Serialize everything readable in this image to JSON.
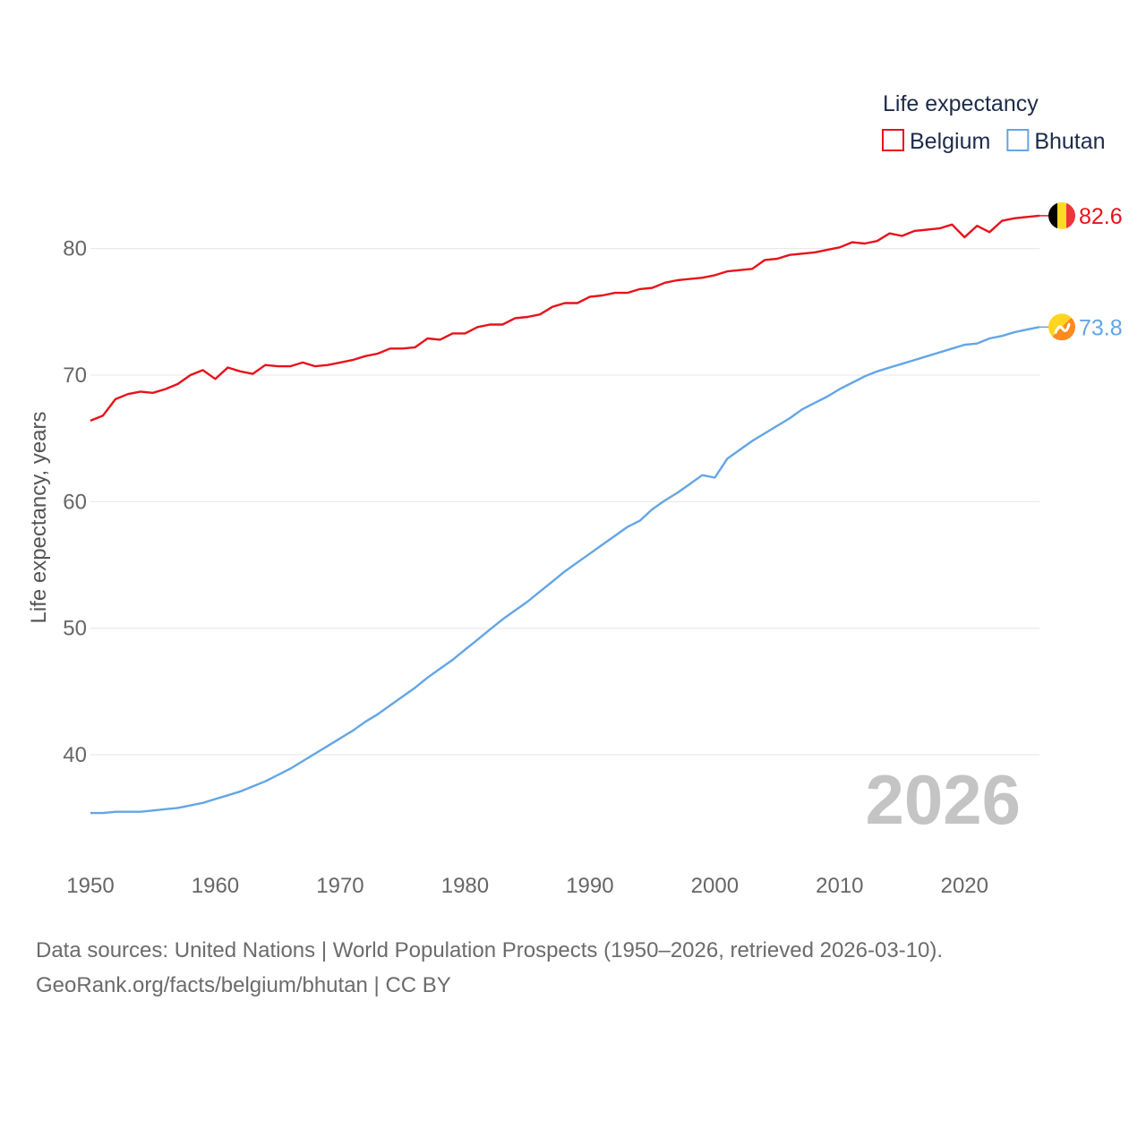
{
  "chart_data": {
    "type": "line",
    "title": "Life expectancy",
    "ylabel": "Life expectancy, years",
    "xlabel": "",
    "xlim": [
      1950,
      2026
    ],
    "ylim": [
      33,
      85
    ],
    "yticks": [
      40,
      50,
      60,
      70,
      80
    ],
    "xticks": [
      1950,
      1960,
      1970,
      1980,
      1990,
      2000,
      2010,
      2020
    ],
    "grid": true,
    "legend_position": "top-right",
    "year_label": "2026",
    "series": [
      {
        "name": "Belgium",
        "color": "#e8111b",
        "end_label": "82.6",
        "flag": "belgium-flag-icon",
        "x": [
          1950,
          1951,
          1952,
          1953,
          1954,
          1955,
          1956,
          1957,
          1958,
          1959,
          1960,
          1961,
          1962,
          1963,
          1964,
          1965,
          1966,
          1967,
          1968,
          1969,
          1970,
          1971,
          1972,
          1973,
          1974,
          1975,
          1976,
          1977,
          1978,
          1979,
          1980,
          1981,
          1982,
          1983,
          1984,
          1985,
          1986,
          1987,
          1988,
          1989,
          1990,
          1991,
          1992,
          1993,
          1994,
          1995,
          1996,
          1997,
          1998,
          1999,
          2000,
          2001,
          2002,
          2003,
          2004,
          2005,
          2006,
          2007,
          2008,
          2009,
          2010,
          2011,
          2012,
          2013,
          2014,
          2015,
          2016,
          2017,
          2018,
          2019,
          2020,
          2021,
          2022,
          2023,
          2024,
          2025,
          2026
        ],
        "values": [
          66.4,
          66.8,
          68.1,
          68.5,
          68.7,
          68.6,
          68.9,
          69.3,
          70.0,
          70.4,
          69.7,
          70.6,
          70.3,
          70.1,
          70.8,
          70.7,
          70.7,
          71.0,
          70.7,
          70.8,
          71.0,
          71.2,
          71.5,
          71.7,
          72.1,
          72.1,
          72.2,
          72.9,
          72.8,
          73.3,
          73.3,
          73.8,
          74.0,
          74.0,
          74.5,
          74.6,
          74.8,
          75.4,
          75.7,
          75.7,
          76.2,
          76.3,
          76.5,
          76.5,
          76.8,
          76.9,
          77.3,
          77.5,
          77.6,
          77.7,
          77.9,
          78.2,
          78.3,
          78.4,
          79.1,
          79.2,
          79.5,
          79.6,
          79.7,
          79.9,
          80.1,
          80.5,
          80.4,
          80.6,
          81.2,
          81.0,
          81.4,
          81.5,
          81.6,
          81.9,
          80.9,
          81.8,
          81.3,
          82.2,
          82.4,
          82.5,
          82.6
        ]
      },
      {
        "name": "Bhutan",
        "color": "#63a5e6",
        "end_label": "73.8",
        "flag": "bhutan-flag-icon",
        "x": [
          1950,
          1951,
          1952,
          1953,
          1954,
          1955,
          1956,
          1957,
          1958,
          1959,
          1960,
          1961,
          1962,
          1963,
          1964,
          1965,
          1966,
          1967,
          1968,
          1969,
          1970,
          1971,
          1972,
          1973,
          1974,
          1975,
          1976,
          1977,
          1978,
          1979,
          1980,
          1981,
          1982,
          1983,
          1984,
          1985,
          1986,
          1987,
          1988,
          1989,
          1990,
          1991,
          1992,
          1993,
          1994,
          1995,
          1996,
          1997,
          1998,
          1999,
          2000,
          2001,
          2002,
          2003,
          2004,
          2005,
          2006,
          2007,
          2008,
          2009,
          2010,
          2011,
          2012,
          2013,
          2014,
          2015,
          2016,
          2017,
          2018,
          2019,
          2020,
          2021,
          2022,
          2023,
          2024,
          2025,
          2026
        ],
        "values": [
          35.4,
          35.4,
          35.5,
          35.5,
          35.5,
          35.6,
          35.7,
          35.8,
          36.0,
          36.2,
          36.5,
          36.8,
          37.1,
          37.5,
          37.9,
          38.4,
          38.9,
          39.5,
          40.1,
          40.7,
          41.3,
          41.9,
          42.6,
          43.2,
          43.9,
          44.6,
          45.3,
          46.1,
          46.8,
          47.5,
          48.3,
          49.1,
          49.9,
          50.7,
          51.4,
          52.1,
          52.9,
          53.7,
          54.5,
          55.2,
          55.9,
          56.6,
          57.3,
          58.0,
          58.5,
          59.4,
          60.1,
          60.7,
          61.4,
          62.1,
          61.9,
          63.4,
          64.1,
          64.8,
          65.4,
          66.0,
          66.6,
          67.3,
          67.8,
          68.3,
          68.9,
          69.4,
          69.9,
          70.3,
          70.6,
          70.9,
          71.2,
          71.5,
          71.8,
          72.1,
          72.4,
          72.5,
          72.9,
          73.1,
          73.4,
          73.6,
          73.8
        ]
      }
    ]
  },
  "footer": {
    "sources": "Data sources: United Nations | World Population Prospects (1950–2026, retrieved 2026-03-10).",
    "attribution": "GeoRank.org/facts/belgium/bhutan | CC BY"
  }
}
